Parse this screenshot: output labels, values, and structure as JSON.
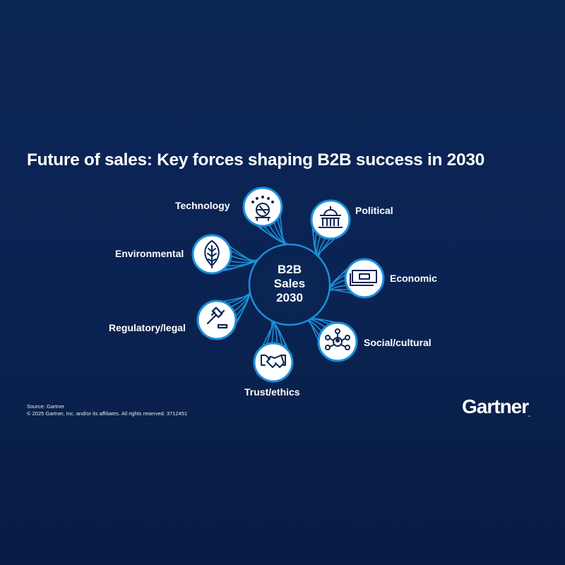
{
  "title": "Future of sales: Key forces shaping B2B success in 2030",
  "center": {
    "line1": "B2B",
    "line2": "Sales",
    "line3": "2030"
  },
  "forces": [
    {
      "label": "Technology",
      "icon": "technology-icon"
    },
    {
      "label": "Political",
      "icon": "capitol-building-icon"
    },
    {
      "label": "Economic",
      "icon": "money-bill-icon"
    },
    {
      "label": "Social/cultural",
      "icon": "network-people-icon"
    },
    {
      "label": "Trust/ethics",
      "icon": "handshake-icon"
    },
    {
      "label": "Regulatory/legal",
      "icon": "gavel-icon"
    },
    {
      "label": "Environmental",
      "icon": "leaf-icon"
    }
  ],
  "footer": {
    "source": "Source: Gartner",
    "copyright": "© 2025 Gartner, Inc. and/or its affiliates. All rights reserved. 3712451"
  },
  "logo": "Gartner",
  "colors": {
    "background": "#0b2555",
    "accent": "#1a8fd8",
    "text": "#ffffff"
  }
}
